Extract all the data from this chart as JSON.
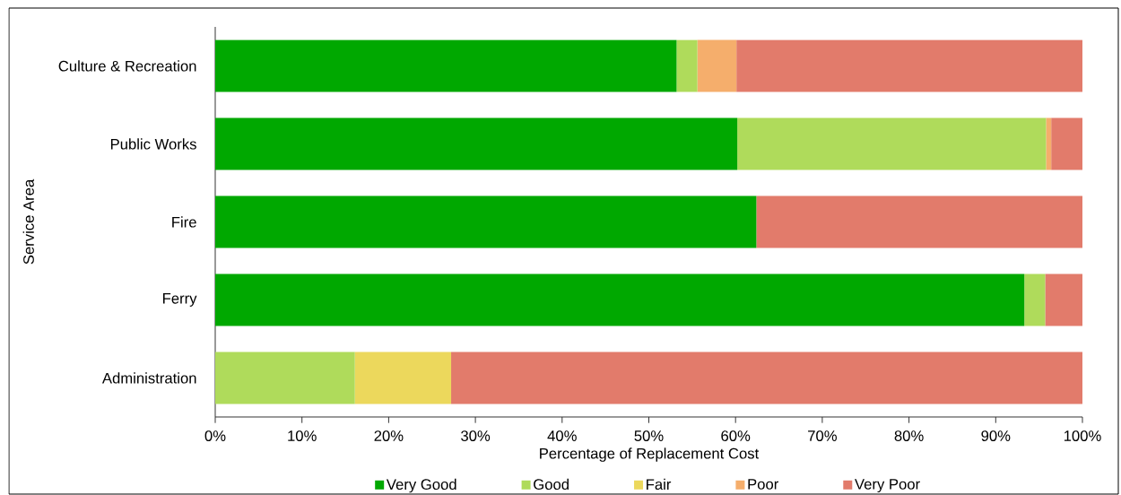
{
  "chart_data": {
    "type": "bar",
    "orientation": "horizontal",
    "stacked": true,
    "xlabel": "Percentage of Replacement Cost",
    "ylabel": "Service Area",
    "categories": [
      "Culture & Recreation",
      "Public Works",
      "Fire",
      "Ferry",
      "Administration"
    ],
    "series": [
      {
        "name": "Very Good",
        "color": "#00a800",
        "values": [
          53.2,
          60.2,
          62.4,
          93.3,
          0
        ]
      },
      {
        "name": "Good",
        "color": "#afdb5b",
        "values": [
          2.4,
          35.6,
          0,
          2.4,
          16.1
        ]
      },
      {
        "name": "Fair",
        "color": "#ecd85c",
        "values": [
          0,
          0,
          0,
          0,
          11.1
        ]
      },
      {
        "name": "Poor",
        "color": "#f5ae6c",
        "values": [
          4.5,
          0.6,
          0,
          0,
          0
        ]
      },
      {
        "name": "Very Poor",
        "color": "#e27b6b",
        "values": [
          39.9,
          3.6,
          37.6,
          4.3,
          72.8
        ]
      }
    ],
    "xlim": [
      0,
      100
    ],
    "xticks": [
      {
        "value": 0,
        "label": "0%"
      },
      {
        "value": 10,
        "label": "10%"
      },
      {
        "value": 20,
        "label": "20%"
      },
      {
        "value": 30,
        "label": "30%"
      },
      {
        "value": 40,
        "label": "40%"
      },
      {
        "value": 50,
        "label": "50%"
      },
      {
        "value": 60,
        "label": "60%"
      },
      {
        "value": 70,
        "label": "70%"
      },
      {
        "value": 80,
        "label": "80%"
      },
      {
        "value": 90,
        "label": "90%"
      },
      {
        "value": 100,
        "label": "100%"
      }
    ],
    "legend": "bottom",
    "grid": false
  }
}
